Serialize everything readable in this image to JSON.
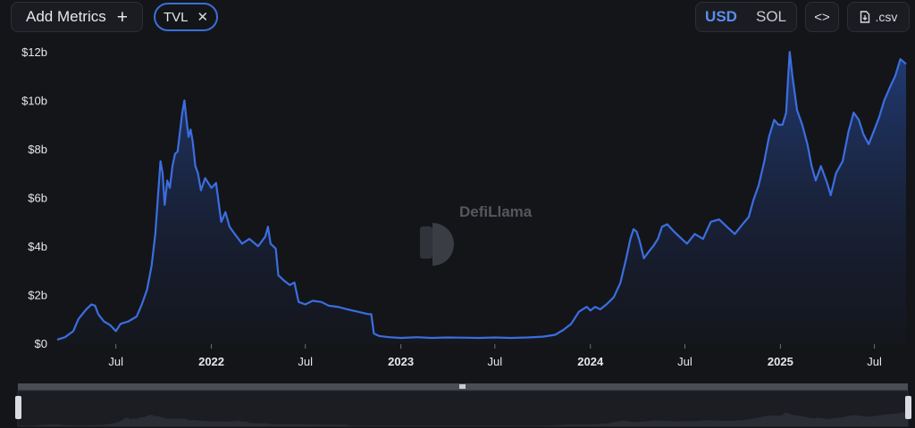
{
  "toolbar": {
    "add_metrics_label": "Add Metrics",
    "add_icon": "plus-icon",
    "chip_label": "TVL",
    "chip_remove_icon": "close-icon",
    "currency_usd": "USD",
    "currency_sol": "SOL",
    "selected_currency": "USD",
    "embed_icon": "code-icon",
    "csv_label": ".csv",
    "csv_icon": "download-file-icon"
  },
  "watermark": {
    "text": "DefiLlama",
    "icon": "llama-logo"
  },
  "colors": {
    "accent": "#3a6fdc",
    "line": "#3b6ee0",
    "background": "#141519",
    "text_muted": "#c9cbd1"
  },
  "chart_data": {
    "type": "area",
    "title": "",
    "xlabel": "",
    "ylabel": "",
    "y_tick_labels": [
      "$0",
      "$2b",
      "$4b",
      "$6b",
      "$8b",
      "$10b",
      "$12b"
    ],
    "y_ticks": [
      0,
      2,
      4,
      6,
      8,
      10,
      12
    ],
    "ylim": [
      0,
      12.3
    ],
    "x_ticks": [
      {
        "date": "2021-07-01",
        "label": "Jul",
        "bold": false
      },
      {
        "date": "2022-01-01",
        "label": "2022",
        "bold": true
      },
      {
        "date": "2022-07-01",
        "label": "Jul",
        "bold": false
      },
      {
        "date": "2023-01-01",
        "label": "2023",
        "bold": true
      },
      {
        "date": "2023-07-01",
        "label": "Jul",
        "bold": false
      },
      {
        "date": "2024-01-01",
        "label": "2024",
        "bold": true
      },
      {
        "date": "2024-07-01",
        "label": "Jul",
        "bold": false
      },
      {
        "date": "2025-01-01",
        "label": "2025",
        "bold": true
      },
      {
        "date": "2025-07-01",
        "label": "Jul",
        "bold": false
      }
    ],
    "xlim": [
      "2021-03-10",
      "2025-08-31"
    ],
    "grid": false,
    "series": [
      {
        "values_unit": "billion USD",
        "points": [
          [
            "2021-03-10",
            0.15
          ],
          [
            "2021-03-25",
            0.25
          ],
          [
            "2021-04-10",
            0.5
          ],
          [
            "2021-04-20",
            1.0
          ],
          [
            "2021-05-05",
            1.4
          ],
          [
            "2021-05-15",
            1.6
          ],
          [
            "2021-05-22",
            1.55
          ],
          [
            "2021-05-28",
            1.2
          ],
          [
            "2021-06-08",
            0.9
          ],
          [
            "2021-06-20",
            0.75
          ],
          [
            "2021-07-01",
            0.5
          ],
          [
            "2021-07-10",
            0.8
          ],
          [
            "2021-07-25",
            0.9
          ],
          [
            "2021-08-10",
            1.1
          ],
          [
            "2021-08-20",
            1.6
          ],
          [
            "2021-08-30",
            2.2
          ],
          [
            "2021-09-08",
            3.2
          ],
          [
            "2021-09-15",
            4.5
          ],
          [
            "2021-09-20",
            6.0
          ],
          [
            "2021-09-25",
            7.5
          ],
          [
            "2021-09-29",
            7.0
          ],
          [
            "2021-10-03",
            5.7
          ],
          [
            "2021-10-08",
            6.7
          ],
          [
            "2021-10-13",
            6.4
          ],
          [
            "2021-10-18",
            7.3
          ],
          [
            "2021-10-23",
            7.8
          ],
          [
            "2021-10-28",
            7.9
          ],
          [
            "2021-11-02",
            8.8
          ],
          [
            "2021-11-06",
            9.5
          ],
          [
            "2021-11-10",
            10.0
          ],
          [
            "2021-11-14",
            9.2
          ],
          [
            "2021-11-18",
            8.5
          ],
          [
            "2021-11-22",
            8.8
          ],
          [
            "2021-11-26",
            8.3
          ],
          [
            "2021-12-01",
            7.3
          ],
          [
            "2021-12-06",
            7.0
          ],
          [
            "2021-12-12",
            6.3
          ],
          [
            "2021-12-20",
            6.8
          ],
          [
            "2022-01-01",
            6.4
          ],
          [
            "2022-01-10",
            6.6
          ],
          [
            "2022-01-20",
            5.0
          ],
          [
            "2022-01-28",
            5.4
          ],
          [
            "2022-02-05",
            4.8
          ],
          [
            "2022-02-15",
            4.5
          ],
          [
            "2022-03-01",
            4.1
          ],
          [
            "2022-03-15",
            4.3
          ],
          [
            "2022-04-01",
            4.0
          ],
          [
            "2022-04-15",
            4.4
          ],
          [
            "2022-04-20",
            4.8
          ],
          [
            "2022-04-25",
            4.1
          ],
          [
            "2022-05-05",
            3.9
          ],
          [
            "2022-05-10",
            2.8
          ],
          [
            "2022-05-20",
            2.6
          ],
          [
            "2022-06-01",
            2.4
          ],
          [
            "2022-06-10",
            2.5
          ],
          [
            "2022-06-18",
            1.7
          ],
          [
            "2022-07-01",
            1.6
          ],
          [
            "2022-07-15",
            1.75
          ],
          [
            "2022-08-01",
            1.7
          ],
          [
            "2022-08-15",
            1.55
          ],
          [
            "2022-09-01",
            1.5
          ],
          [
            "2022-09-20",
            1.4
          ],
          [
            "2022-10-10",
            1.3
          ],
          [
            "2022-10-30",
            1.2
          ],
          [
            "2022-11-05",
            1.2
          ],
          [
            "2022-11-10",
            0.4
          ],
          [
            "2022-11-20",
            0.3
          ],
          [
            "2022-12-10",
            0.25
          ],
          [
            "2023-01-01",
            0.22
          ],
          [
            "2023-02-01",
            0.25
          ],
          [
            "2023-03-01",
            0.22
          ],
          [
            "2023-04-01",
            0.24
          ],
          [
            "2023-05-01",
            0.23
          ],
          [
            "2023-06-01",
            0.22
          ],
          [
            "2023-07-01",
            0.24
          ],
          [
            "2023-08-01",
            0.22
          ],
          [
            "2023-09-01",
            0.24
          ],
          [
            "2023-10-01",
            0.27
          ],
          [
            "2023-10-25",
            0.35
          ],
          [
            "2023-11-10",
            0.55
          ],
          [
            "2023-11-25",
            0.8
          ],
          [
            "2023-12-10",
            1.3
          ],
          [
            "2023-12-25",
            1.5
          ],
          [
            "2024-01-01",
            1.35
          ],
          [
            "2024-01-10",
            1.5
          ],
          [
            "2024-01-20",
            1.4
          ],
          [
            "2024-02-01",
            1.6
          ],
          [
            "2024-02-15",
            1.9
          ],
          [
            "2024-02-28",
            2.5
          ],
          [
            "2024-03-10",
            3.5
          ],
          [
            "2024-03-18",
            4.3
          ],
          [
            "2024-03-24",
            4.7
          ],
          [
            "2024-03-30",
            4.6
          ],
          [
            "2024-04-05",
            4.2
          ],
          [
            "2024-04-13",
            3.5
          ],
          [
            "2024-04-20",
            3.7
          ],
          [
            "2024-05-01",
            4.0
          ],
          [
            "2024-05-10",
            4.3
          ],
          [
            "2024-05-18",
            4.8
          ],
          [
            "2024-05-28",
            4.9
          ],
          [
            "2024-06-10",
            4.6
          ],
          [
            "2024-06-25",
            4.3
          ],
          [
            "2024-07-05",
            4.1
          ],
          [
            "2024-07-20",
            4.5
          ],
          [
            "2024-08-05",
            4.3
          ],
          [
            "2024-08-20",
            5.0
          ],
          [
            "2024-09-05",
            5.1
          ],
          [
            "2024-09-20",
            4.8
          ],
          [
            "2024-10-05",
            4.5
          ],
          [
            "2024-10-20",
            4.9
          ],
          [
            "2024-11-01",
            5.2
          ],
          [
            "2024-11-10",
            5.9
          ],
          [
            "2024-11-20",
            6.5
          ],
          [
            "2024-12-01",
            7.5
          ],
          [
            "2024-12-10",
            8.5
          ],
          [
            "2024-12-20",
            9.2
          ],
          [
            "2024-12-28",
            9.0
          ],
          [
            "2025-01-05",
            9.0
          ],
          [
            "2025-01-12",
            9.5
          ],
          [
            "2025-01-16",
            11.0
          ],
          [
            "2025-01-19",
            12.0
          ],
          [
            "2025-01-24",
            11.0
          ],
          [
            "2025-02-02",
            9.6
          ],
          [
            "2025-02-12",
            9.0
          ],
          [
            "2025-02-22",
            8.2
          ],
          [
            "2025-03-02",
            7.3
          ],
          [
            "2025-03-10",
            6.7
          ],
          [
            "2025-03-20",
            7.3
          ],
          [
            "2025-04-01",
            6.6
          ],
          [
            "2025-04-08",
            6.1
          ],
          [
            "2025-04-18",
            7.0
          ],
          [
            "2025-05-01",
            7.5
          ],
          [
            "2025-05-12",
            8.7
          ],
          [
            "2025-05-22",
            9.5
          ],
          [
            "2025-06-01",
            9.2
          ],
          [
            "2025-06-10",
            8.6
          ],
          [
            "2025-06-20",
            8.2
          ],
          [
            "2025-07-01",
            8.8
          ],
          [
            "2025-07-10",
            9.3
          ],
          [
            "2025-07-20",
            10.0
          ],
          [
            "2025-08-01",
            10.6
          ],
          [
            "2025-08-10",
            11.0
          ],
          [
            "2025-08-20",
            11.7
          ],
          [
            "2025-08-31",
            11.5
          ]
        ]
      }
    ]
  }
}
